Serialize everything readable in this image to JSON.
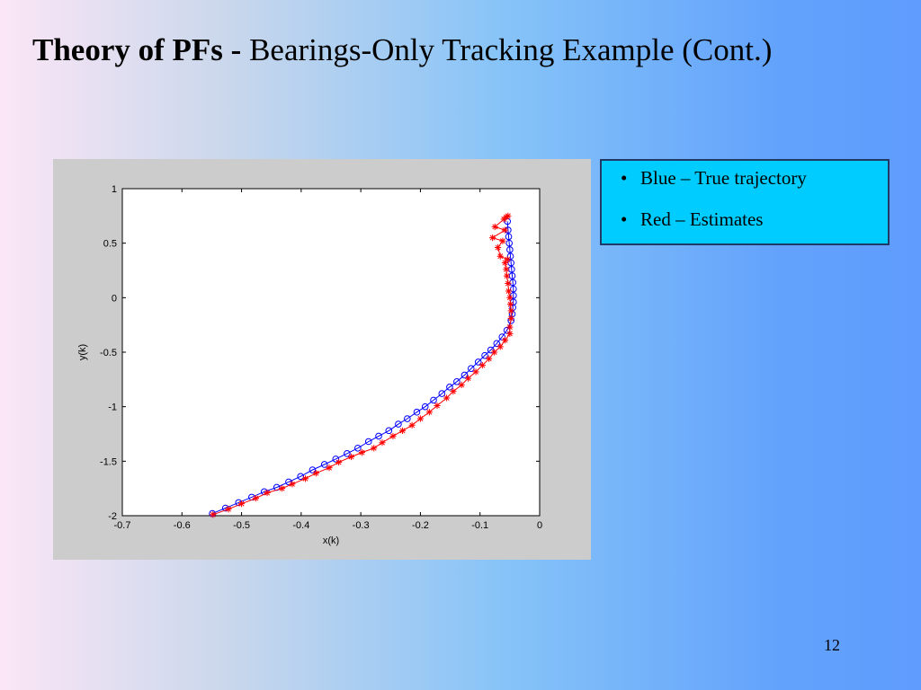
{
  "slide": {
    "title_bold": "Theory of PFs - ",
    "title_rest": "Bearings-Only Tracking Example  (Cont.)",
    "bullets": [
      "Blue – True trajectory",
      "Red  – Estimates"
    ],
    "bullet_glyph": "•",
    "page_number": "12"
  },
  "colors": {
    "true_trajectory": "#0000ff",
    "estimates": "#ff0000",
    "legend_background": "#00ccff"
  },
  "chart_data": {
    "type": "line",
    "title": "",
    "xlabel": "x(k)",
    "ylabel": "y(k)",
    "xlim": [
      -0.7,
      0
    ],
    "ylim": [
      -2,
      1
    ],
    "xticks": [
      -0.7,
      -0.6,
      -0.5,
      -0.4,
      -0.3,
      -0.2,
      -0.1,
      0
    ],
    "xtick_labels": [
      "-0.7",
      "-0.6",
      "-0.5",
      "-0.4",
      "-0.3",
      "-0.2",
      "-0.1",
      "0"
    ],
    "yticks": [
      -2,
      -1.5,
      -1,
      -0.5,
      0,
      0.5,
      1
    ],
    "ytick_labels": [
      "-2",
      "-1.5",
      "-1",
      "-0.5",
      "0",
      "0.5",
      "1"
    ],
    "grid": false,
    "series": [
      {
        "marker": "circle",
        "color": "#0000ff",
        "x": [
          -0.549,
          -0.527,
          -0.505,
          -0.483,
          -0.462,
          -0.441,
          -0.421,
          -0.401,
          -0.381,
          -0.361,
          -0.342,
          -0.323,
          -0.305,
          -0.287,
          -0.27,
          -0.253,
          -0.237,
          -0.222,
          -0.206,
          -0.192,
          -0.178,
          -0.164,
          -0.151,
          -0.139,
          -0.126,
          -0.115,
          -0.103,
          -0.092,
          -0.082,
          -0.072,
          -0.063,
          -0.055,
          -0.048,
          -0.046,
          -0.045,
          -0.044,
          -0.044,
          -0.044,
          -0.045,
          -0.046,
          -0.047,
          -0.048,
          -0.049,
          -0.05,
          -0.051,
          -0.052,
          -0.053,
          -0.054
        ],
        "y": [
          -1.98,
          -1.93,
          -1.88,
          -1.83,
          -1.78,
          -1.74,
          -1.69,
          -1.64,
          -1.58,
          -1.53,
          -1.48,
          -1.43,
          -1.38,
          -1.32,
          -1.27,
          -1.22,
          -1.16,
          -1.11,
          -1.05,
          -1.0,
          -0.94,
          -0.88,
          -0.82,
          -0.77,
          -0.71,
          -0.65,
          -0.59,
          -0.53,
          -0.48,
          -0.42,
          -0.36,
          -0.3,
          -0.21,
          -0.15,
          -0.09,
          -0.04,
          0.02,
          0.08,
          0.14,
          0.2,
          0.26,
          0.32,
          0.38,
          0.44,
          0.5,
          0.56,
          0.62,
          0.7
        ]
      },
      {
        "marker": "star",
        "color": "#ff0000",
        "x": [
          -0.548,
          -0.522,
          -0.5,
          -0.476,
          -0.457,
          -0.432,
          -0.415,
          -0.393,
          -0.375,
          -0.353,
          -0.337,
          -0.316,
          -0.298,
          -0.278,
          -0.264,
          -0.246,
          -0.23,
          -0.214,
          -0.2,
          -0.185,
          -0.172,
          -0.156,
          -0.145,
          -0.131,
          -0.12,
          -0.107,
          -0.096,
          -0.085,
          -0.076,
          -0.066,
          -0.058,
          -0.05,
          -0.05,
          -0.048,
          -0.048,
          -0.049,
          -0.05,
          -0.052,
          -0.053,
          -0.055,
          -0.056,
          -0.058,
          -0.054,
          -0.066,
          -0.07,
          -0.062,
          -0.079,
          -0.058,
          -0.075,
          -0.06,
          -0.056,
          -0.053
        ],
        "y": [
          -1.99,
          -1.94,
          -1.89,
          -1.84,
          -1.79,
          -1.75,
          -1.71,
          -1.66,
          -1.61,
          -1.56,
          -1.51,
          -1.46,
          -1.42,
          -1.38,
          -1.33,
          -1.27,
          -1.22,
          -1.17,
          -1.11,
          -1.05,
          -0.99,
          -0.92,
          -0.86,
          -0.8,
          -0.74,
          -0.68,
          -0.62,
          -0.56,
          -0.5,
          -0.45,
          -0.39,
          -0.33,
          -0.27,
          -0.19,
          -0.12,
          -0.06,
          0.0,
          0.06,
          0.13,
          0.2,
          0.26,
          0.32,
          0.35,
          0.38,
          0.46,
          0.52,
          0.55,
          0.62,
          0.65,
          0.72,
          0.74,
          0.75
        ]
      }
    ]
  }
}
